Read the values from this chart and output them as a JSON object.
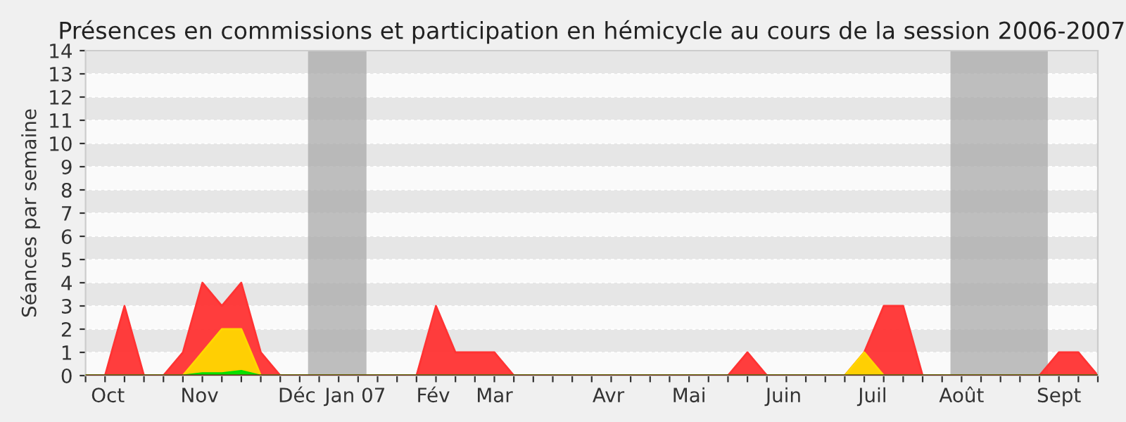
{
  "chart_data": {
    "type": "area",
    "title": "Présences en commissions et participation en hémicycle au cours de la session 2006-2007",
    "ylabel": "Séances par semaine",
    "x": [
      "2006-10-06",
      "2006-10-13",
      "2006-10-20",
      "2006-10-27",
      "2006-11-03",
      "2006-11-10",
      "2006-11-17",
      "2006-11-24",
      "2006-12-01",
      "2006-12-08",
      "2006-12-15",
      "2006-12-22",
      "2006-12-29",
      "2007-01-05",
      "2007-01-12",
      "2007-01-19",
      "2007-01-26",
      "2007-02-02",
      "2007-02-09",
      "2007-02-16",
      "2007-02-23",
      "2007-03-02",
      "2007-03-09",
      "2007-03-16",
      "2007-03-23",
      "2007-03-30",
      "2007-04-06",
      "2007-04-13",
      "2007-04-20",
      "2007-04-27",
      "2007-05-04",
      "2007-05-11",
      "2007-05-18",
      "2007-05-25",
      "2007-06-01",
      "2007-06-08",
      "2007-06-15",
      "2007-06-22",
      "2007-06-29",
      "2007-07-06",
      "2007-07-13",
      "2007-07-20",
      "2007-07-27",
      "2007-08-03",
      "2007-08-10",
      "2007-08-17",
      "2007-08-24",
      "2007-08-31",
      "2007-09-07",
      "2007-09-14",
      "2007-09-21",
      "2007-09-28",
      "2007-10-05"
    ],
    "series": [
      {
        "color": "#ff3333",
        "values": [
          0,
          0,
          3,
          0,
          0,
          1,
          4,
          3,
          4,
          1,
          0,
          0,
          0,
          0,
          0,
          0,
          0,
          0,
          3,
          1,
          1,
          1,
          0,
          0,
          0,
          0,
          0,
          0,
          0,
          0,
          0,
          0,
          0,
          0,
          1,
          0,
          0,
          0,
          0,
          0,
          1,
          3,
          3,
          0,
          0,
          0,
          0,
          0,
          0,
          0,
          1,
          1,
          0
        ]
      },
      {
        "color": "#ffd700",
        "values": [
          0,
          0,
          0,
          0,
          0,
          0,
          1,
          2,
          2,
          0,
          0,
          0,
          0,
          0,
          0,
          0,
          0,
          0,
          0,
          0,
          0,
          0,
          0,
          0,
          0,
          0,
          0,
          0,
          0,
          0,
          0,
          0,
          0,
          0,
          0,
          0,
          0,
          0,
          0,
          0,
          1,
          0,
          0,
          0,
          0,
          0,
          0,
          0,
          0,
          0,
          0,
          0,
          0
        ]
      },
      {
        "color": "#00e000",
        "values": [
          0,
          0,
          0,
          0,
          0,
          0,
          0.1,
          0.1,
          0.2,
          0,
          0,
          0,
          0,
          0,
          0,
          0,
          0,
          0,
          0,
          0,
          0,
          0,
          0,
          0,
          0,
          0,
          0,
          0,
          0,
          0,
          0,
          0,
          0,
          0,
          0,
          0,
          0,
          0,
          0,
          0,
          0,
          0,
          0,
          0,
          0,
          0,
          0,
          0,
          0,
          0,
          0,
          0,
          0
        ]
      }
    ],
    "xlim": [
      "2006-10-06",
      "2007-10-05"
    ],
    "xticks": [
      {
        "value": "2006-10-14",
        "label": "Oct"
      },
      {
        "value": "2006-11-16",
        "label": "Nov"
      },
      {
        "value": "2006-12-21",
        "label": "Déc"
      },
      {
        "value": "2007-01-11",
        "label": "Jan 07"
      },
      {
        "value": "2007-02-08",
        "label": "Fév"
      },
      {
        "value": "2007-03-02",
        "label": "Mar"
      },
      {
        "value": "2007-04-12",
        "label": "Avr"
      },
      {
        "value": "2007-05-11",
        "label": "Mai"
      },
      {
        "value": "2007-06-14",
        "label": "Juin"
      },
      {
        "value": "2007-07-16",
        "label": "Juil"
      },
      {
        "value": "2007-08-17",
        "label": "Août"
      },
      {
        "value": "2007-09-21",
        "label": "Sept"
      }
    ],
    "ylim": [
      0,
      14
    ],
    "yticks": [
      0,
      1,
      2,
      3,
      4,
      5,
      6,
      7,
      8,
      9,
      10,
      11,
      12,
      13,
      14
    ],
    "bands": [
      {
        "axis": "x",
        "from": "2006-12-25",
        "to": "2007-01-15",
        "color": "#aaaaaa"
      },
      {
        "axis": "x",
        "from": "2007-08-13",
        "to": "2007-09-17",
        "color": "#aaaaaa"
      }
    ],
    "grid": "y",
    "legend": false
  }
}
